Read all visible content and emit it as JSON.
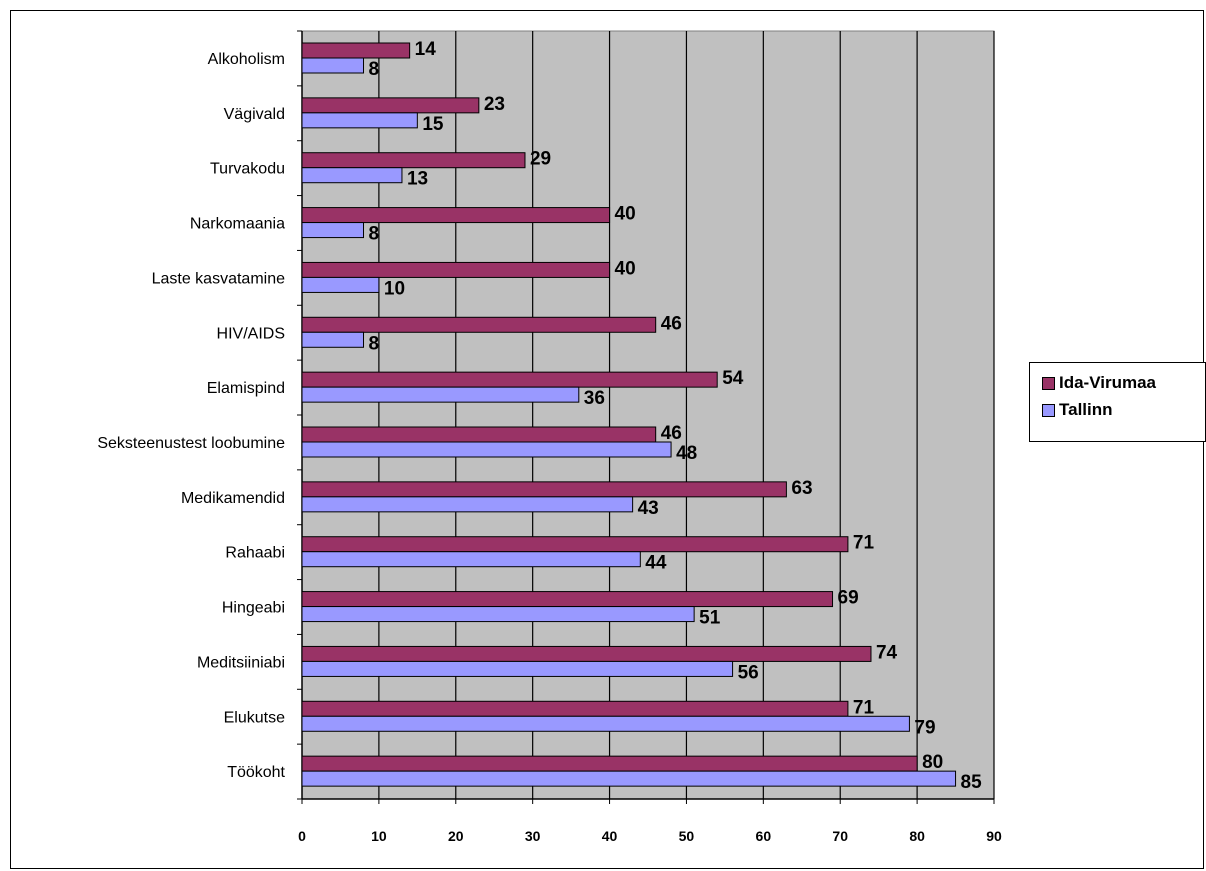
{
  "chart_data": {
    "type": "bar",
    "orientation": "horizontal",
    "categories": [
      "Alkoholism",
      "Vägivald",
      "Turvakodu",
      "Narkomaania",
      "Laste kasvatamine",
      "HIV/AIDS",
      "Elamispind",
      "Seksteenustest loobumine",
      "Medikamendid",
      "Rahaabi",
      "Hingeabi",
      "Meditsiiniabi",
      "Elukutse",
      "Töökoht"
    ],
    "series": [
      {
        "name": "Ida-Virumaa",
        "color": "#993366",
        "values": [
          14,
          23,
          29,
          40,
          40,
          46,
          54,
          46,
          63,
          71,
          69,
          74,
          71,
          80
        ]
      },
      {
        "name": "Tallinn",
        "color": "#9999ff",
        "values": [
          8,
          15,
          13,
          8,
          10,
          8,
          36,
          48,
          43,
          44,
          51,
          56,
          79,
          85
        ]
      }
    ],
    "xlim": [
      0,
      90
    ],
    "xticks": [
      "0",
      "10",
      "20",
      "30",
      "40",
      "50",
      "60",
      "70",
      "80",
      "90"
    ],
    "xlabel": "",
    "ylabel": "",
    "title": "",
    "grid": true,
    "plot_background": "#c0c0c0",
    "legend_position": "right",
    "data_labels": true
  }
}
